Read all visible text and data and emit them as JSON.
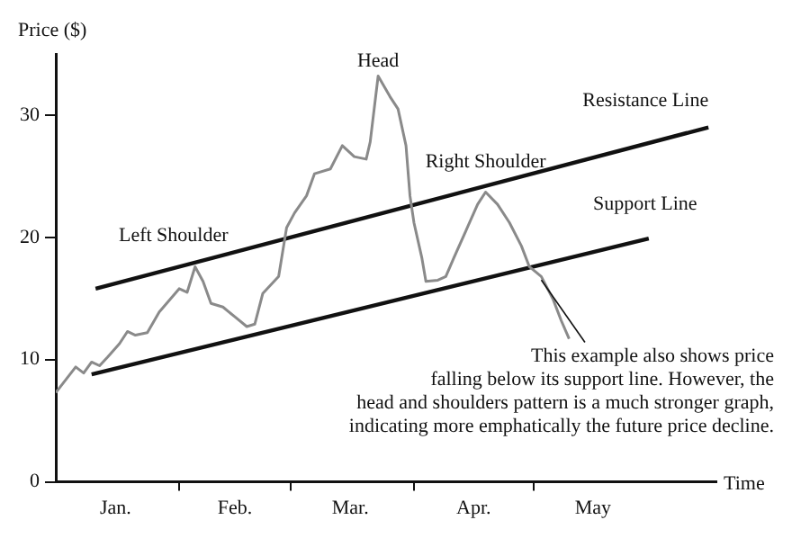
{
  "chart_data": {
    "type": "line",
    "xlabel": "Time",
    "ylabel": "Price ($)",
    "xlim": [
      "--01-01",
      "--06-16"
    ],
    "ylim": [
      0,
      35
    ],
    "yticks": [
      0,
      10,
      20,
      30
    ],
    "xticks": [
      {
        "value": "--01-16",
        "label": "Jan."
      },
      {
        "value": "--02-01",
        "label": null
      },
      {
        "value": "--02-15",
        "label": "Feb."
      },
      {
        "value": "--03-01",
        "label": null
      },
      {
        "value": "--03-16",
        "label": "Mar."
      },
      {
        "value": "--04-01",
        "label": null
      },
      {
        "value": "--04-16",
        "label": "Apr."
      },
      {
        "value": "--05-01",
        "label": null
      },
      {
        "value": "--05-16",
        "label": "May"
      }
    ],
    "grid": false,
    "legend": false,
    "marker": "none",
    "series": [
      {
        "color": "#8a8a8a",
        "x": [
          "--01-01",
          "--01-06",
          "--01-08",
          "--01-10",
          "--01-12",
          "--01-14",
          "--01-17",
          "--01-19",
          "--01-21",
          "--01-24",
          "--01-27",
          "--02-01",
          "--02-03",
          "--02-05",
          "--02-07",
          "--02-09",
          "--02-12",
          "--02-15",
          "--02-18",
          "--02-20",
          "--02-22",
          "--02-24",
          "--02-26",
          "--02-28",
          "--03-02",
          "--03-05",
          "--03-07",
          "--03-11",
          "--03-14",
          "--03-17",
          "--03-20",
          "--03-21",
          "--03-23",
          "--03-26",
          "--03-28",
          "--03-30",
          "--03-31",
          "--04-01",
          "--04-03",
          "--04-04",
          "--04-07",
          "--04-09",
          "--04-11",
          "--04-14",
          "--04-17",
          "--04-19",
          "--04-22",
          "--04-25",
          "--04-28",
          "--04-30",
          "--05-03",
          "--05-06",
          "--05-08",
          "--05-10"
        ],
        "values": [
          7.3,
          9.4,
          8.9,
          9.8,
          9.5,
          10.2,
          11.3,
          12.3,
          12,
          12.2,
          13.9,
          15.8,
          15.5,
          17.6,
          16.4,
          14.6,
          14.3,
          13.5,
          12.7,
          12.9,
          15.4,
          16.1,
          16.8,
          20.8,
          22,
          23.4,
          25.2,
          25.6,
          27.5,
          26.6,
          26.4,
          27.8,
          33.2,
          31.5,
          30.5,
          27.5,
          23.4,
          21.2,
          18.3,
          16.4,
          16.5,
          16.8,
          18.3,
          20.5,
          22.7,
          23.7,
          22.7,
          21.2,
          19.3,
          17.6,
          16.8,
          14.9,
          13.2,
          11.7
        ]
      },
      {
        "color": "#111111",
        "x": [
          "--01-11",
          "--06-14"
        ],
        "values": [
          15.8,
          29
        ]
      },
      {
        "color": "#111111",
        "x": [
          "--01-10",
          "--05-30"
        ],
        "values": [
          8.8,
          19.9
        ]
      }
    ],
    "annotations": [
      {
        "text": "Head",
        "x": "--03-23",
        "y": 33.2
      },
      {
        "text": "Left Shoulder",
        "x": "--02-05",
        "y": 17.6
      },
      {
        "text": "Right Shoulder",
        "x": "--04-19",
        "y": 23.7
      },
      {
        "text": "Resistance Line",
        "x": "--06-14",
        "y": 29
      },
      {
        "text": "Support Line",
        "x": "--05-30",
        "y": 19.9
      },
      {
        "text": "This example also shows price\nfalling below its support line. However, the\nhead and shoulders pattern is a much stronger graph,\nindicating more emphatically the future price decline.",
        "x": "--05-03",
        "y": 16.8
      }
    ]
  }
}
